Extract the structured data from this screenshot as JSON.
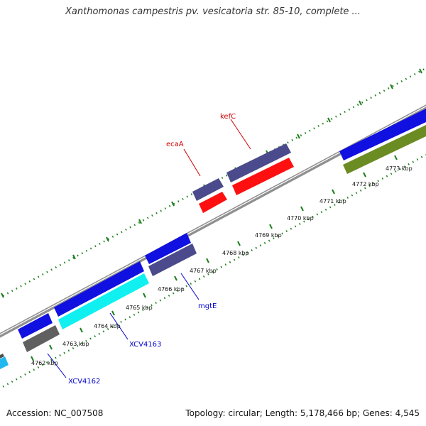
{
  "header": {
    "title": "Xanthomonas campestris pv. vesicatoria str. 85-10, complete ..."
  },
  "footer": {
    "accession": "Accession: NC_007508",
    "summary": "Topology: circular; Length: 5,178,466 bp; Genes: 4,545"
  },
  "ticks": [
    {
      "label": "4762 kbp"
    },
    {
      "label": "4763 kbp"
    },
    {
      "label": "4764 kbp"
    },
    {
      "label": "4765 kbp"
    },
    {
      "label": "4766 kbp"
    },
    {
      "label": "4767 kbp"
    },
    {
      "label": "4768 kbp"
    },
    {
      "label": "4769 kbp"
    },
    {
      "label": "4770 kbp"
    },
    {
      "label": "4771 kbp"
    },
    {
      "label": "4772 kbp"
    },
    {
      "label": "4773 kbp"
    }
  ],
  "gene_labels": {
    "kefC": "kefC",
    "ecaA": "ecaA",
    "mgtE": "mgtE",
    "xcv4163": "XCV4163",
    "xcv4162": "XCV4162"
  },
  "colors": {
    "blue": "#1010e0",
    "slate": "#4a4a8c",
    "red": "#ff1010",
    "cyan": "#10f0f0",
    "gray": "#606060",
    "olive": "#6b8c23",
    "sky": "#20b8ee",
    "backbone": "#909090",
    "ruler": "#1e7f1e"
  }
}
